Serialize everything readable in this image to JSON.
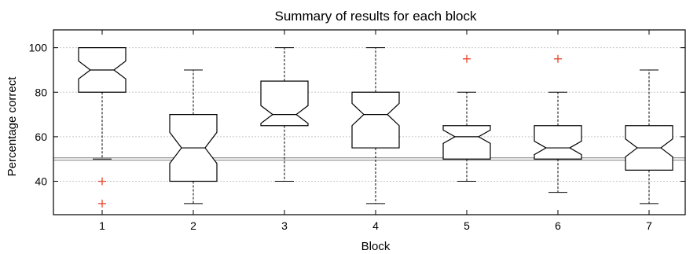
{
  "chart_data": {
    "type": "box",
    "title": "Summary of results for each block",
    "xlabel": "Block",
    "ylabel": "Percentage correct",
    "ylim": [
      25,
      108
    ],
    "yticks": [
      40,
      60,
      80,
      100
    ],
    "grid": true,
    "reference_line": 50,
    "notched": true,
    "outlier_color": "#e8452c",
    "categories": [
      "1",
      "2",
      "3",
      "4",
      "5",
      "6",
      "7"
    ],
    "boxes": [
      {
        "category": "1",
        "whisker_low": 50,
        "q1": 80,
        "median": 90,
        "q3": 100,
        "whisker_high": 100,
        "notch_low": 86,
        "notch_high": 94,
        "outliers": [
          40,
          30
        ]
      },
      {
        "category": "2",
        "whisker_low": 30,
        "q1": 40,
        "median": 55,
        "q3": 70,
        "whisker_high": 90,
        "notch_low": 48,
        "notch_high": 62,
        "outliers": []
      },
      {
        "category": "3",
        "whisker_low": 40,
        "q1": 65,
        "median": 70,
        "q3": 85,
        "whisker_high": 100,
        "notch_low": 66,
        "notch_high": 74,
        "outliers": []
      },
      {
        "category": "4",
        "whisker_low": 30,
        "q1": 55,
        "median": 70,
        "q3": 80,
        "whisker_high": 100,
        "notch_low": 65,
        "notch_high": 75,
        "outliers": []
      },
      {
        "category": "5",
        "whisker_low": 40,
        "q1": 50,
        "median": 60,
        "q3": 65,
        "whisker_high": 80,
        "notch_low": 57,
        "notch_high": 63,
        "outliers": [
          95
        ]
      },
      {
        "category": "6",
        "whisker_low": 35,
        "q1": 50,
        "median": 55,
        "q3": 65,
        "whisker_high": 80,
        "notch_low": 52,
        "notch_high": 58,
        "outliers": [
          95
        ]
      },
      {
        "category": "7",
        "whisker_low": 30,
        "q1": 45,
        "median": 55,
        "q3": 65,
        "whisker_high": 90,
        "notch_low": 51,
        "notch_high": 59,
        "outliers": []
      }
    ]
  }
}
